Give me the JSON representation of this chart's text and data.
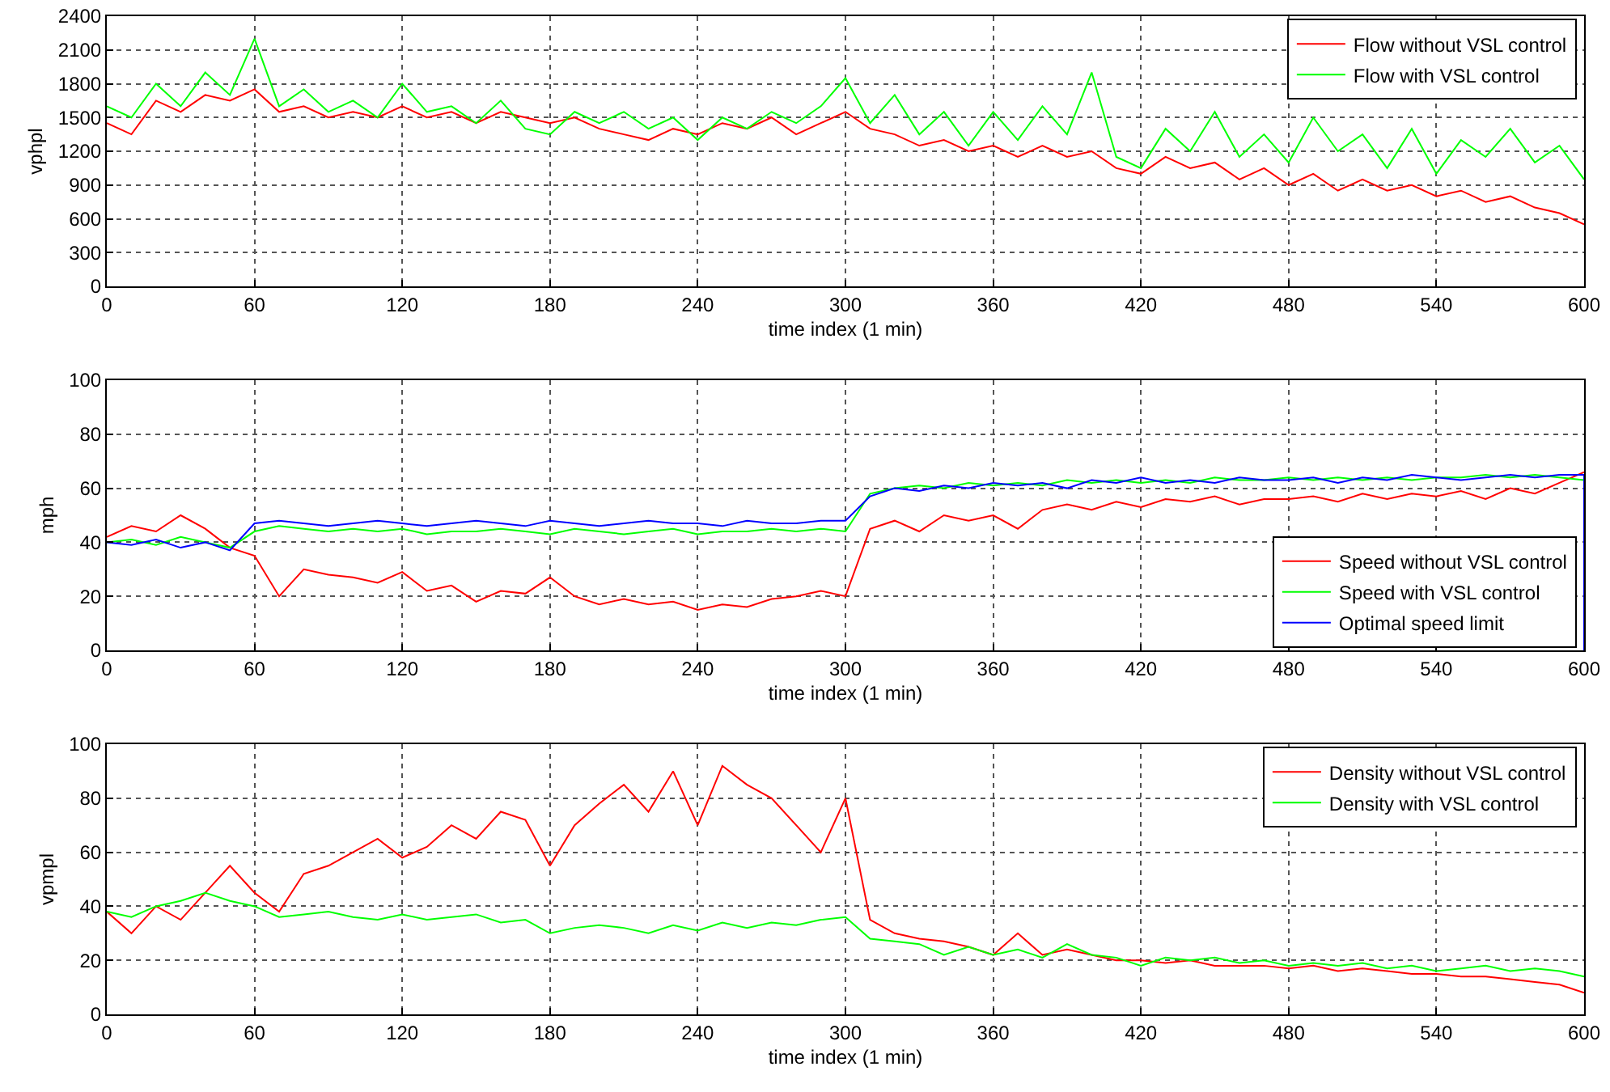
{
  "chart_data": [
    {
      "type": "line",
      "xlabel": "time index (1 min)",
      "ylabel": "vphpl",
      "x": [
        0,
        10,
        20,
        30,
        40,
        50,
        60,
        70,
        80,
        90,
        100,
        110,
        120,
        130,
        140,
        150,
        160,
        170,
        180,
        190,
        200,
        210,
        220,
        230,
        240,
        250,
        260,
        270,
        280,
        290,
        300,
        310,
        320,
        330,
        340,
        350,
        360,
        370,
        380,
        390,
        400,
        410,
        420,
        430,
        440,
        450,
        460,
        470,
        480,
        490,
        500,
        510,
        520,
        530,
        540,
        550,
        560,
        570,
        580,
        590,
        600
      ],
      "xlim": [
        0,
        600
      ],
      "xticks": [
        0,
        60,
        120,
        180,
        240,
        300,
        360,
        420,
        480,
        540,
        600
      ],
      "ylim": [
        0,
        2400
      ],
      "yticks": [
        0,
        300,
        600,
        900,
        1200,
        1500,
        1800,
        2100,
        2400
      ],
      "grid": true,
      "legend": "top right",
      "series": [
        {
          "name": "Flow without VSL control",
          "color": "#ff0000",
          "values": [
            1450,
            1350,
            1650,
            1550,
            1700,
            1650,
            1750,
            1550,
            1600,
            1500,
            1550,
            1500,
            1600,
            1500,
            1550,
            1450,
            1550,
            1500,
            1450,
            1500,
            1400,
            1350,
            1300,
            1400,
            1350,
            1450,
            1400,
            1500,
            1350,
            1450,
            1550,
            1400,
            1350,
            1250,
            1300,
            1200,
            1250,
            1150,
            1250,
            1150,
            1200,
            1050,
            1000,
            1150,
            1050,
            1100,
            950,
            1050,
            900,
            1000,
            850,
            950,
            850,
            900,
            800,
            850,
            750,
            800,
            700,
            650,
            550
          ]
        },
        {
          "name": "Flow with VSL control",
          "color": "#00ff00",
          "values": [
            1600,
            1500,
            1800,
            1600,
            1900,
            1700,
            2200,
            1600,
            1750,
            1550,
            1650,
            1500,
            1800,
            1550,
            1600,
            1450,
            1650,
            1400,
            1350,
            1550,
            1450,
            1550,
            1400,
            1500,
            1300,
            1500,
            1400,
            1550,
            1450,
            1600,
            1850,
            1450,
            1700,
            1350,
            1550,
            1250,
            1550,
            1300,
            1600,
            1350,
            1900,
            1150,
            1050,
            1400,
            1200,
            1550,
            1150,
            1350,
            1100,
            1500,
            1200,
            1350,
            1050,
            1400,
            1000,
            1300,
            1150,
            1400,
            1100,
            1250,
            950
          ]
        }
      ]
    },
    {
      "type": "line",
      "xlabel": "time index (1 min)",
      "ylabel": "mph",
      "x": [
        0,
        10,
        20,
        30,
        40,
        50,
        60,
        70,
        80,
        90,
        100,
        110,
        120,
        130,
        140,
        150,
        160,
        170,
        180,
        190,
        200,
        210,
        220,
        230,
        240,
        250,
        260,
        270,
        280,
        290,
        300,
        310,
        320,
        330,
        340,
        350,
        360,
        370,
        380,
        390,
        400,
        410,
        420,
        430,
        440,
        450,
        460,
        470,
        480,
        490,
        500,
        510,
        520,
        530,
        540,
        550,
        560,
        570,
        580,
        590,
        600
      ],
      "xlim": [
        0,
        600
      ],
      "xticks": [
        0,
        60,
        120,
        180,
        240,
        300,
        360,
        420,
        480,
        540,
        600
      ],
      "ylim": [
        0,
        100
      ],
      "yticks": [
        0,
        20,
        40,
        60,
        80,
        100
      ],
      "grid": true,
      "legend": "bottom right",
      "series": [
        {
          "name": "Speed without VSL control",
          "color": "#ff0000",
          "values": [
            42,
            46,
            44,
            50,
            45,
            38,
            35,
            20,
            30,
            28,
            27,
            25,
            29,
            22,
            24,
            18,
            22,
            21,
            27,
            20,
            17,
            19,
            17,
            18,
            15,
            17,
            16,
            19,
            20,
            22,
            20,
            45,
            48,
            44,
            50,
            48,
            50,
            45,
            52,
            54,
            52,
            55,
            53,
            56,
            55,
            57,
            54,
            56,
            56,
            57,
            55,
            58,
            56,
            58,
            57,
            59,
            56,
            60,
            58,
            62,
            66
          ]
        },
        {
          "name": "Speed with VSL control",
          "color": "#00ff00",
          "values": [
            40,
            41,
            39,
            42,
            40,
            38,
            44,
            46,
            45,
            44,
            45,
            44,
            45,
            43,
            44,
            44,
            45,
            44,
            43,
            45,
            44,
            43,
            44,
            45,
            43,
            44,
            44,
            45,
            44,
            45,
            44,
            58,
            60,
            61,
            60,
            62,
            61,
            62,
            61,
            63,
            62,
            63,
            62,
            63,
            62,
            64,
            63,
            63,
            64,
            63,
            64,
            63,
            64,
            63,
            64,
            64,
            65,
            64,
            65,
            64,
            63
          ]
        },
        {
          "name": "Optimal speed limit",
          "color": "#0000ff",
          "x": [
            0,
            10,
            20,
            30,
            40,
            50,
            60,
            70,
            80,
            90,
            100,
            110,
            120,
            130,
            140,
            150,
            160,
            170,
            180,
            190,
            200,
            210,
            220,
            230,
            240,
            250,
            260,
            270,
            280,
            290,
            300,
            310,
            320,
            330,
            340,
            350,
            360,
            370,
            380,
            390,
            400,
            410,
            420,
            430,
            440,
            450,
            460,
            470,
            480,
            490,
            500,
            510,
            520,
            530,
            540,
            550,
            560,
            570,
            580,
            590,
            600,
            600
          ],
          "values": [
            40,
            39,
            41,
            38,
            40,
            37,
            47,
            48,
            47,
            46,
            47,
            48,
            47,
            46,
            47,
            48,
            47,
            46,
            48,
            47,
            46,
            47,
            48,
            47,
            47,
            46,
            48,
            47,
            47,
            48,
            48,
            57,
            60,
            59,
            61,
            60,
            62,
            61,
            62,
            60,
            63,
            62,
            64,
            62,
            63,
            62,
            64,
            63,
            63,
            64,
            62,
            64,
            63,
            65,
            64,
            63,
            64,
            65,
            64,
            65,
            65,
            0
          ]
        }
      ]
    },
    {
      "type": "line",
      "xlabel": "time index (1 min)",
      "ylabel": "vpmpl",
      "x": [
        0,
        10,
        20,
        30,
        40,
        50,
        60,
        70,
        80,
        90,
        100,
        110,
        120,
        130,
        140,
        150,
        160,
        170,
        180,
        190,
        200,
        210,
        220,
        230,
        240,
        250,
        260,
        270,
        280,
        290,
        300,
        310,
        320,
        330,
        340,
        350,
        360,
        370,
        380,
        390,
        400,
        410,
        420,
        430,
        440,
        450,
        460,
        470,
        480,
        490,
        500,
        510,
        520,
        530,
        540,
        550,
        560,
        570,
        580,
        590,
        600
      ],
      "xlim": [
        0,
        600
      ],
      "xticks": [
        0,
        60,
        120,
        180,
        240,
        300,
        360,
        420,
        480,
        540,
        600
      ],
      "ylim": [
        0,
        100
      ],
      "yticks": [
        0,
        20,
        40,
        60,
        80,
        100
      ],
      "grid": true,
      "legend": "top right",
      "series": [
        {
          "name": "Density without VSL control",
          "color": "#ff0000",
          "values": [
            38,
            30,
            40,
            35,
            45,
            55,
            45,
            38,
            52,
            55,
            60,
            65,
            58,
            62,
            70,
            65,
            75,
            72,
            55,
            70,
            78,
            85,
            75,
            90,
            70,
            92,
            85,
            80,
            70,
            60,
            80,
            35,
            30,
            28,
            27,
            25,
            22,
            30,
            22,
            24,
            22,
            20,
            20,
            19,
            20,
            18,
            18,
            18,
            17,
            18,
            16,
            17,
            16,
            15,
            15,
            14,
            14,
            13,
            12,
            11,
            8
          ]
        },
        {
          "name": "Density with VSL control",
          "color": "#00ff00",
          "values": [
            38,
            36,
            40,
            42,
            45,
            42,
            40,
            36,
            37,
            38,
            36,
            35,
            37,
            35,
            36,
            37,
            34,
            35,
            30,
            32,
            33,
            32,
            30,
            33,
            31,
            34,
            32,
            34,
            33,
            35,
            36,
            28,
            27,
            26,
            22,
            25,
            22,
            24,
            21,
            26,
            22,
            21,
            18,
            21,
            20,
            21,
            19,
            20,
            18,
            19,
            18,
            19,
            17,
            18,
            16,
            17,
            18,
            16,
            17,
            16,
            14
          ]
        }
      ]
    }
  ]
}
